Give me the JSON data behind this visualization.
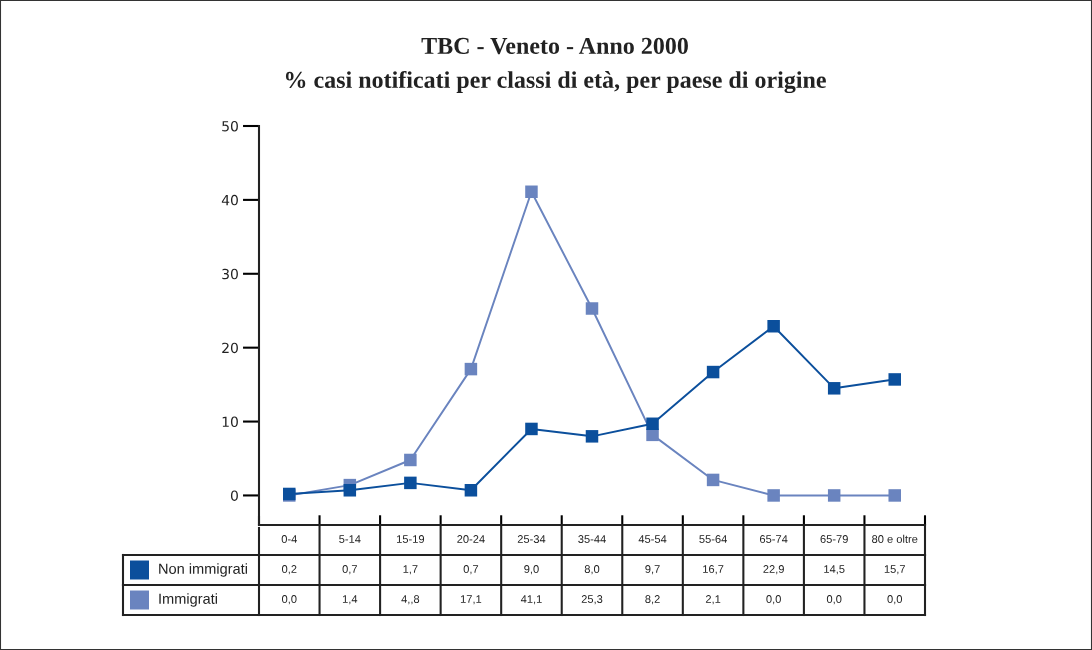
{
  "chart_data": {
    "type": "line",
    "title": "TBC - Veneto - Anno 2000",
    "subtitle": "% casi notificati per classi di età, per paese di origine",
    "categories": [
      "0-4",
      "5-14",
      "15-19",
      "20-24",
      "25-34",
      "35-44",
      "45-54",
      "55-64",
      "65-74",
      "65-79",
      "80 e oltre"
    ],
    "series": [
      {
        "name": "Non immigrati",
        "color": "#0b4f9c",
        "values": [
          0.2,
          0.7,
          1.7,
          0.7,
          9.0,
          8.0,
          9.7,
          16.7,
          22.9,
          14.5,
          15.7
        ],
        "value_labels": [
          "0,2",
          "0,7",
          "1,7",
          "0,7",
          "9,0",
          "8,0",
          "9,7",
          "16,7",
          "22,9",
          "14,5",
          "15,7"
        ]
      },
      {
        "name": "Immigrati",
        "color": "#6a84bf",
        "values": [
          0.0,
          1.4,
          4.8,
          17.1,
          41.1,
          25.3,
          8.2,
          2.1,
          0.0,
          0.0,
          0.0
        ],
        "value_labels": [
          "0,0",
          "1,4",
          "4,,8",
          "17,1",
          "41,1",
          "25,3",
          "8,2",
          "2,1",
          "0,0",
          "0,0",
          "0,0"
        ]
      }
    ],
    "ylim": [
      -4,
      50
    ],
    "yticks": [
      0,
      10,
      20,
      30,
      40,
      50
    ],
    "grid": false,
    "legend": "bottom left",
    "marker": "square",
    "line_style": "solid"
  }
}
